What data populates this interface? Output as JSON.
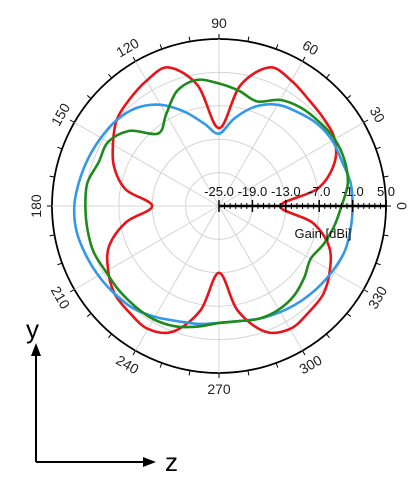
{
  "chart_data": {
    "type": "polar-line",
    "radial_axis": {
      "label": "Gain [dBi]",
      "range": [
        -25.0,
        5.0
      ],
      "ticks": [
        -25.0,
        -19.0,
        -13.0,
        -7.0,
        -1.0,
        5.0
      ],
      "tick_labels": [
        "-25.0",
        "-19.0",
        "-13.0",
        "-7.0",
        "-1.0",
        "5.0"
      ]
    },
    "angular_axis": {
      "ticks": [
        0,
        30,
        60,
        90,
        120,
        150,
        180,
        210,
        240,
        270,
        300,
        330
      ],
      "tick_labels": [
        "0",
        "30",
        "60",
        "90",
        "120",
        "150",
        "180",
        "210",
        "240",
        "270",
        "300",
        "330"
      ]
    },
    "grid": true,
    "series": [
      {
        "color": "#e8141b",
        "points": [
          [
            0,
            -14
          ],
          [
            10,
            -7
          ],
          [
            20,
            -3
          ],
          [
            30,
            -1
          ],
          [
            40,
            -0.5
          ],
          [
            50,
            0
          ],
          [
            60,
            1
          ],
          [
            70,
            1.5
          ],
          [
            80,
            -3
          ],
          [
            90,
            -11
          ],
          [
            100,
            -3
          ],
          [
            110,
            1.5
          ],
          [
            120,
            1
          ],
          [
            130,
            0
          ],
          [
            140,
            -1
          ],
          [
            150,
            -3
          ],
          [
            160,
            -5
          ],
          [
            170,
            -8
          ],
          [
            180,
            -13
          ],
          [
            190,
            -8
          ],
          [
            200,
            -4
          ],
          [
            210,
            -2
          ],
          [
            220,
            -0.5
          ],
          [
            230,
            0
          ],
          [
            240,
            0.5
          ],
          [
            250,
            -1
          ],
          [
            260,
            -6
          ],
          [
            270,
            -13
          ],
          [
            280,
            -6
          ],
          [
            290,
            -1
          ],
          [
            300,
            0.5
          ],
          [
            310,
            0
          ],
          [
            320,
            -0.5
          ],
          [
            330,
            -2
          ],
          [
            340,
            -4
          ],
          [
            350,
            -8
          ]
        ]
      },
      {
        "color": "#3398e8",
        "points": [
          [
            0,
            -1
          ],
          [
            10,
            -1
          ],
          [
            20,
            -1.5
          ],
          [
            30,
            -1.5
          ],
          [
            40,
            -2
          ],
          [
            50,
            -3
          ],
          [
            60,
            -4
          ],
          [
            70,
            -6
          ],
          [
            80,
            -9
          ],
          [
            90,
            -12
          ],
          [
            100,
            -10
          ],
          [
            110,
            -7
          ],
          [
            120,
            -4
          ],
          [
            130,
            -2
          ],
          [
            140,
            -1
          ],
          [
            150,
            -0.5
          ],
          [
            160,
            0
          ],
          [
            170,
            0.5
          ],
          [
            180,
            1
          ],
          [
            190,
            1
          ],
          [
            200,
            0.5
          ],
          [
            210,
            0
          ],
          [
            220,
            -0.5
          ],
          [
            230,
            -1
          ],
          [
            240,
            -2
          ],
          [
            250,
            -3
          ],
          [
            260,
            -3.5
          ],
          [
            270,
            -4
          ],
          [
            280,
            -4
          ],
          [
            290,
            -3.5
          ],
          [
            300,
            -3
          ],
          [
            310,
            -2.5
          ],
          [
            320,
            -2
          ],
          [
            330,
            -1.5
          ],
          [
            340,
            -1
          ],
          [
            350,
            -1
          ]
        ]
      },
      {
        "color": "#1e8a1e",
        "points": [
          [
            0,
            -3
          ],
          [
            10,
            -1.5
          ],
          [
            20,
            -1
          ],
          [
            30,
            -1
          ],
          [
            40,
            -1.5
          ],
          [
            50,
            -2
          ],
          [
            60,
            -3
          ],
          [
            70,
            -5
          ],
          [
            80,
            -4
          ],
          [
            90,
            -3
          ],
          [
            100,
            -2
          ],
          [
            110,
            -3
          ],
          [
            120,
            -6
          ],
          [
            130,
            -8
          ],
          [
            140,
            -4
          ],
          [
            150,
            -2
          ],
          [
            160,
            -2
          ],
          [
            170,
            -1
          ],
          [
            180,
            -1
          ],
          [
            190,
            -1
          ],
          [
            200,
            -1
          ],
          [
            210,
            -1.5
          ],
          [
            220,
            -1.5
          ],
          [
            230,
            -1.5
          ],
          [
            240,
            -1.5
          ],
          [
            250,
            -2
          ],
          [
            260,
            -3
          ],
          [
            270,
            -4
          ],
          [
            280,
            -4
          ],
          [
            290,
            -3.5
          ],
          [
            300,
            -3.5
          ],
          [
            310,
            -4
          ],
          [
            320,
            -5
          ],
          [
            330,
            -6
          ],
          [
            340,
            -5
          ],
          [
            350,
            -4
          ]
        ]
      }
    ]
  },
  "axes_indicator": {
    "vertical_label": "y",
    "horizontal_label": "z"
  }
}
